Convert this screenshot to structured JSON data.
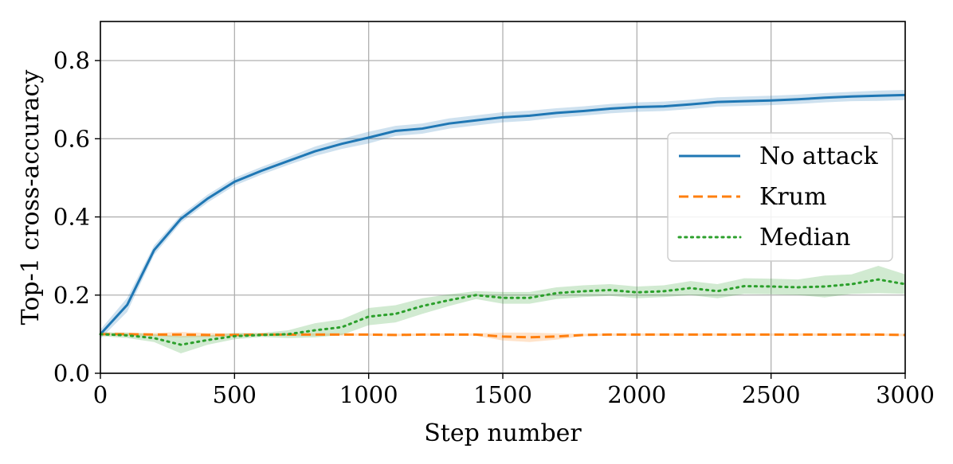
{
  "chart_data": {
    "type": "line",
    "xlabel": "Step number",
    "ylabel": "Top-1 cross-accuracy",
    "xlim": [
      0,
      3000
    ],
    "ylim": [
      0,
      0.9
    ],
    "xticks": [
      0,
      500,
      1000,
      1500,
      2000,
      2500,
      3000
    ],
    "xtick_labels": [
      "0",
      "500",
      "1000",
      "1500",
      "2000",
      "2500",
      "3000"
    ],
    "yticks": [
      0.0,
      0.2,
      0.4,
      0.6,
      0.8
    ],
    "ytick_labels": [
      "0.0",
      "0.2",
      "0.4",
      "0.6",
      "0.8"
    ],
    "grid": true,
    "legend_position": "center-right",
    "x": [
      0,
      100,
      200,
      300,
      400,
      500,
      600,
      700,
      800,
      900,
      1000,
      1100,
      1200,
      1300,
      1400,
      1500,
      1600,
      1700,
      1800,
      1900,
      2000,
      2100,
      2200,
      2300,
      2400,
      2500,
      2600,
      2700,
      2800,
      2900,
      3000
    ],
    "series": [
      {
        "name": "No attack",
        "color": "#1f77b4",
        "style": "solid",
        "values": [
          0.1,
          0.175,
          0.315,
          0.395,
          0.447,
          0.49,
          0.518,
          0.543,
          0.568,
          0.587,
          0.603,
          0.62,
          0.626,
          0.639,
          0.647,
          0.655,
          0.659,
          0.666,
          0.671,
          0.677,
          0.681,
          0.683,
          0.688,
          0.694,
          0.696,
          0.698,
          0.701,
          0.705,
          0.708,
          0.71,
          0.712
        ],
        "band": [
          0.012,
          0.018,
          0.012,
          0.01,
          0.01,
          0.01,
          0.01,
          0.01,
          0.012,
          0.013,
          0.015,
          0.013,
          0.013,
          0.013,
          0.013,
          0.013,
          0.013,
          0.012,
          0.012,
          0.012,
          0.012,
          0.012,
          0.012,
          0.012,
          0.012,
          0.012,
          0.012,
          0.012,
          0.012,
          0.013,
          0.013
        ]
      },
      {
        "name": "Krum",
        "color": "#ff7f0e",
        "style": "dashed",
        "values": [
          0.1,
          0.1,
          0.099,
          0.099,
          0.098,
          0.098,
          0.099,
          0.099,
          0.099,
          0.099,
          0.099,
          0.098,
          0.099,
          0.099,
          0.099,
          0.094,
          0.092,
          0.094,
          0.098,
          0.099,
          0.099,
          0.099,
          0.099,
          0.099,
          0.099,
          0.099,
          0.099,
          0.099,
          0.099,
          0.099,
          0.098
        ],
        "band": [
          0.003,
          0.003,
          0.004,
          0.007,
          0.005,
          0.004,
          0.003,
          0.003,
          0.003,
          0.003,
          0.003,
          0.003,
          0.003,
          0.003,
          0.003,
          0.01,
          0.012,
          0.008,
          0.003,
          0.003,
          0.003,
          0.003,
          0.003,
          0.003,
          0.003,
          0.003,
          0.003,
          0.003,
          0.003,
          0.003,
          0.003
        ]
      },
      {
        "name": "Median",
        "color": "#2ca02c",
        "style": "dotted",
        "values": [
          0.1,
          0.097,
          0.09,
          0.073,
          0.085,
          0.095,
          0.098,
          0.1,
          0.11,
          0.118,
          0.145,
          0.152,
          0.172,
          0.187,
          0.2,
          0.193,
          0.193,
          0.205,
          0.21,
          0.213,
          0.207,
          0.21,
          0.218,
          0.21,
          0.223,
          0.222,
          0.22,
          0.222,
          0.228,
          0.24,
          0.228
        ],
        "band": [
          0.005,
          0.007,
          0.01,
          0.022,
          0.012,
          0.008,
          0.005,
          0.01,
          0.018,
          0.02,
          0.022,
          0.022,
          0.02,
          0.015,
          0.01,
          0.015,
          0.015,
          0.015,
          0.015,
          0.015,
          0.015,
          0.015,
          0.018,
          0.018,
          0.02,
          0.02,
          0.02,
          0.028,
          0.025,
          0.035,
          0.025
        ]
      }
    ]
  }
}
